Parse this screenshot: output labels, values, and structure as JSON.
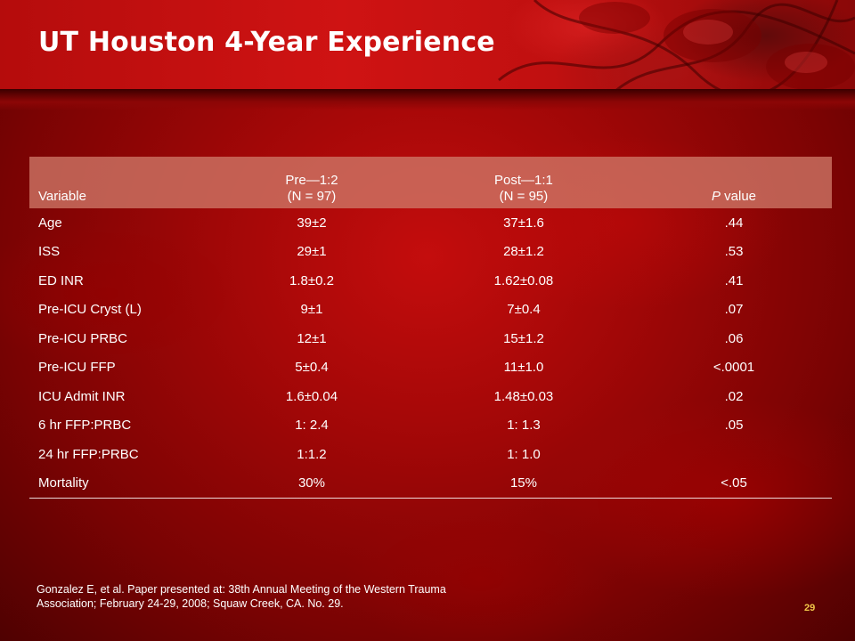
{
  "slide": {
    "title": "UT Houston 4-Year Experience",
    "number": "29",
    "citation": "Gonzalez E, et al. Paper presented at: 38th Annual Meeting of the Western Trauma Association; February 24-29, 2008; Squaw Creek, CA. No. 29."
  },
  "table": {
    "headers": {
      "variable": "Variable",
      "pre_line1": "Pre—1:2",
      "pre_line2": "(N = 97)",
      "post_line1": "Post—1:1",
      "post_line2": "(N = 95)",
      "p_letter": "P",
      "p_rest": " value"
    },
    "rows": [
      {
        "variable": "Age",
        "pre": "39±2",
        "post": "37±1.6",
        "p": ".44"
      },
      {
        "variable": "ISS",
        "pre": "29±1",
        "post": "28±1.2",
        "p": ".53"
      },
      {
        "variable": "ED INR",
        "pre": "1.8±0.2",
        "post": "1.62±0.08",
        "p": ".41"
      },
      {
        "variable": "Pre-ICU Cryst (L)",
        "pre": "9±1",
        "post": "7±0.4",
        "p": ".07"
      },
      {
        "variable": "Pre-ICU PRBC",
        "pre": "12±1",
        "post": "15±1.2",
        "p": ".06"
      },
      {
        "variable": "Pre-ICU FFP",
        "pre": "5±0.4",
        "post": "11±1.0",
        "p": "<.0001"
      },
      {
        "variable": "ICU Admit INR",
        "pre": "1.6±0.04",
        "post": "1.48±0.03",
        "p": ".02"
      },
      {
        "variable": "6 hr FFP:PRBC",
        "pre": "1: 2.4",
        "post": "1: 1.3",
        "p": ".05"
      },
      {
        "variable": "24 hr FFP:PRBC",
        "pre": "1:1.2",
        "post": "1: 1.0",
        "p": ""
      },
      {
        "variable": "Mortality",
        "pre": "30%",
        "post": "15%",
        "p": "<.05"
      }
    ]
  },
  "colors": {
    "background": "#a10707",
    "header_row": "#ce7868",
    "slide_number": "#f2c84a"
  }
}
